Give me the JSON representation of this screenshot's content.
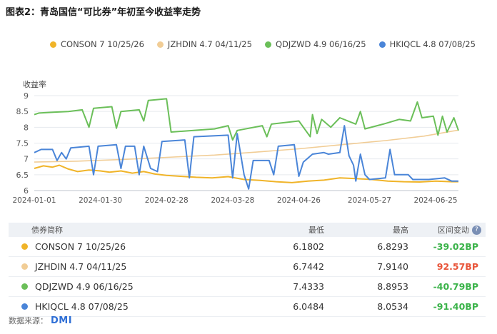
{
  "title": "图表2：青岛国信“可比券”年初至今收益率走势",
  "ylabel": "收益率",
  "chart_data": {
    "type": "line",
    "ylabel": "收益率",
    "ylim": [
      6,
      9
    ],
    "yticks": [
      "6",
      "6.5",
      "7",
      "7.5",
      "8",
      "8.5",
      "9"
    ],
    "xticks": [
      "2024-01-01",
      "2024-01-30",
      "2024-02-28",
      "2024-03-28",
      "2024-04-26",
      "2024-05-27",
      "2024-06-25"
    ],
    "grid": "horizontal",
    "legend": "top",
    "series": [
      {
        "name": "CONSON 7 10/25/26",
        "color": "#f0b429",
        "points": [
          [
            "2024-01-01",
            6.7
          ],
          [
            "2024-01-05",
            6.78
          ],
          [
            "2024-01-09",
            6.74
          ],
          [
            "2024-01-12",
            6.8
          ],
          [
            "2024-01-16",
            6.68
          ],
          [
            "2024-01-20",
            6.6
          ],
          [
            "2024-01-25",
            6.65
          ],
          [
            "2024-01-30",
            6.62
          ],
          [
            "2024-02-03",
            6.58
          ],
          [
            "2024-02-08",
            6.62
          ],
          [
            "2024-02-13",
            6.55
          ],
          [
            "2024-02-18",
            6.6
          ],
          [
            "2024-02-23",
            6.52
          ],
          [
            "2024-02-28",
            6.48
          ],
          [
            "2024-03-05",
            6.45
          ],
          [
            "2024-03-12",
            6.42
          ],
          [
            "2024-03-19",
            6.4
          ],
          [
            "2024-03-26",
            6.44
          ],
          [
            "2024-04-02",
            6.35
          ],
          [
            "2024-04-09",
            6.32
          ],
          [
            "2024-04-16",
            6.28
          ],
          [
            "2024-04-23",
            6.25
          ],
          [
            "2024-04-30",
            6.3
          ],
          [
            "2024-05-07",
            6.33
          ],
          [
            "2024-05-14",
            6.4
          ],
          [
            "2024-05-21",
            6.38
          ],
          [
            "2024-05-28",
            6.35
          ],
          [
            "2024-06-04",
            6.3
          ],
          [
            "2024-06-11",
            6.28
          ],
          [
            "2024-06-18",
            6.27
          ],
          [
            "2024-06-25",
            6.3
          ],
          [
            "2024-07-02",
            6.28
          ],
          [
            "2024-07-05",
            6.28
          ]
        ]
      },
      {
        "name": "JZHDIN 4.7 04/11/25",
        "color": "#f1cd96",
        "points": [
          [
            "2024-01-01",
            6.9
          ],
          [
            "2024-01-20",
            6.93
          ],
          [
            "2024-02-08",
            6.98
          ],
          [
            "2024-02-28",
            7.05
          ],
          [
            "2024-03-20",
            7.12
          ],
          [
            "2024-04-08",
            7.22
          ],
          [
            "2024-04-26",
            7.32
          ],
          [
            "2024-05-15",
            7.45
          ],
          [
            "2024-06-03",
            7.58
          ],
          [
            "2024-06-20",
            7.72
          ],
          [
            "2024-07-05",
            7.91
          ]
        ]
      },
      {
        "name": "QDJZWD 4.9 06/16/25",
        "color": "#6bbf59",
        "points": [
          [
            "2024-01-01",
            8.4
          ],
          [
            "2024-01-03",
            8.45
          ],
          [
            "2024-01-10",
            8.48
          ],
          [
            "2024-01-16",
            8.5
          ],
          [
            "2024-01-22",
            8.55
          ],
          [
            "2024-01-25",
            8.0
          ],
          [
            "2024-01-27",
            8.6
          ],
          [
            "2024-02-04",
            8.65
          ],
          [
            "2024-02-06",
            7.97
          ],
          [
            "2024-02-08",
            8.5
          ],
          [
            "2024-02-16",
            8.55
          ],
          [
            "2024-02-18",
            8.2
          ],
          [
            "2024-02-20",
            8.85
          ],
          [
            "2024-02-28",
            8.9
          ],
          [
            "2024-03-01",
            7.85
          ],
          [
            "2024-03-20",
            7.95
          ],
          [
            "2024-03-26",
            8.05
          ],
          [
            "2024-03-28",
            7.6
          ],
          [
            "2024-03-30",
            7.9
          ],
          [
            "2024-04-10",
            8.05
          ],
          [
            "2024-04-12",
            7.7
          ],
          [
            "2024-04-14",
            8.1
          ],
          [
            "2024-04-26",
            8.2
          ],
          [
            "2024-05-01",
            7.7
          ],
          [
            "2024-05-02",
            8.4
          ],
          [
            "2024-05-04",
            7.8
          ],
          [
            "2024-05-06",
            8.25
          ],
          [
            "2024-05-10",
            8.0
          ],
          [
            "2024-05-14",
            8.3
          ],
          [
            "2024-05-21",
            8.1
          ],
          [
            "2024-05-23",
            8.5
          ],
          [
            "2024-05-25",
            7.95
          ],
          [
            "2024-06-02",
            8.1
          ],
          [
            "2024-06-09",
            8.25
          ],
          [
            "2024-06-14",
            8.2
          ],
          [
            "2024-06-17",
            8.8
          ],
          [
            "2024-06-19",
            8.3
          ],
          [
            "2024-06-24",
            8.35
          ],
          [
            "2024-06-26",
            7.75
          ],
          [
            "2024-06-28",
            8.35
          ],
          [
            "2024-06-30",
            7.85
          ],
          [
            "2024-07-03",
            8.3
          ],
          [
            "2024-07-05",
            7.9
          ]
        ]
      },
      {
        "name": "HKIQCL 4.8 07/08/25",
        "color": "#4a85d8",
        "points": [
          [
            "2024-01-01",
            7.2
          ],
          [
            "2024-01-04",
            7.3
          ],
          [
            "2024-01-09",
            7.3
          ],
          [
            "2024-01-11",
            6.95
          ],
          [
            "2024-01-13",
            7.2
          ],
          [
            "2024-01-15",
            7.0
          ],
          [
            "2024-01-17",
            7.35
          ],
          [
            "2024-01-25",
            7.4
          ],
          [
            "2024-01-27",
            6.5
          ],
          [
            "2024-01-29",
            7.4
          ],
          [
            "2024-02-06",
            7.45
          ],
          [
            "2024-02-08",
            6.7
          ],
          [
            "2024-02-10",
            7.4
          ],
          [
            "2024-02-14",
            7.4
          ],
          [
            "2024-02-16",
            6.5
          ],
          [
            "2024-02-18",
            7.4
          ],
          [
            "2024-02-21",
            6.7
          ],
          [
            "2024-02-24",
            6.6
          ],
          [
            "2024-02-26",
            7.55
          ],
          [
            "2024-03-07",
            7.6
          ],
          [
            "2024-03-09",
            6.4
          ],
          [
            "2024-03-11",
            7.7
          ],
          [
            "2024-03-26",
            7.75
          ],
          [
            "2024-03-28",
            6.4
          ],
          [
            "2024-03-30",
            7.8
          ],
          [
            "2024-04-02",
            6.5
          ],
          [
            "2024-04-04",
            6.05
          ],
          [
            "2024-04-06",
            6.95
          ],
          [
            "2024-04-13",
            6.95
          ],
          [
            "2024-04-15",
            6.5
          ],
          [
            "2024-04-17",
            7.4
          ],
          [
            "2024-04-24",
            7.45
          ],
          [
            "2024-04-26",
            6.45
          ],
          [
            "2024-04-28",
            6.9
          ],
          [
            "2024-05-02",
            7.15
          ],
          [
            "2024-05-07",
            7.2
          ],
          [
            "2024-05-09",
            7.15
          ],
          [
            "2024-05-14",
            7.2
          ],
          [
            "2024-05-16",
            8.05
          ],
          [
            "2024-05-18",
            7.1
          ],
          [
            "2024-05-20",
            6.8
          ],
          [
            "2024-05-21",
            6.3
          ],
          [
            "2024-05-23",
            7.15
          ],
          [
            "2024-05-25",
            6.5
          ],
          [
            "2024-05-27",
            6.35
          ],
          [
            "2024-06-03",
            6.4
          ],
          [
            "2024-06-05",
            7.3
          ],
          [
            "2024-06-07",
            6.5
          ],
          [
            "2024-06-13",
            6.5
          ],
          [
            "2024-06-15",
            6.35
          ],
          [
            "2024-06-22",
            6.35
          ],
          [
            "2024-06-29",
            6.4
          ],
          [
            "2024-07-02",
            6.3
          ],
          [
            "2024-07-05",
            6.3
          ]
        ]
      }
    ]
  },
  "table": {
    "headers": {
      "name": "债券简称",
      "low": "最低",
      "high": "最高",
      "change": "区间变动"
    },
    "help_icon": "?",
    "rows": [
      {
        "name": "CONSON 7 10/25/26",
        "color": "#f0b429",
        "low": "6.1802",
        "high": "6.8293",
        "change": "-39.02BP",
        "change_color": "#3bb34a"
      },
      {
        "name": "JZHDIN 4.7 04/11/25",
        "color": "#f1cd96",
        "low": "6.7442",
        "high": "7.9140",
        "change": "92.57BP",
        "change_color": "#e8553a"
      },
      {
        "name": "QDJZWD 4.9 06/16/25",
        "color": "#6bbf59",
        "low": "7.4333",
        "high": "8.8953",
        "change": "-40.79BP",
        "change_color": "#3bb34a"
      },
      {
        "name": "HKIQCL 4.8 07/08/25",
        "color": "#4a85d8",
        "low": "6.0484",
        "high": "8.0534",
        "change": "-91.40BP",
        "change_color": "#3bb34a"
      }
    ]
  },
  "source": {
    "label": "数据来源：",
    "logo": "DMI"
  }
}
